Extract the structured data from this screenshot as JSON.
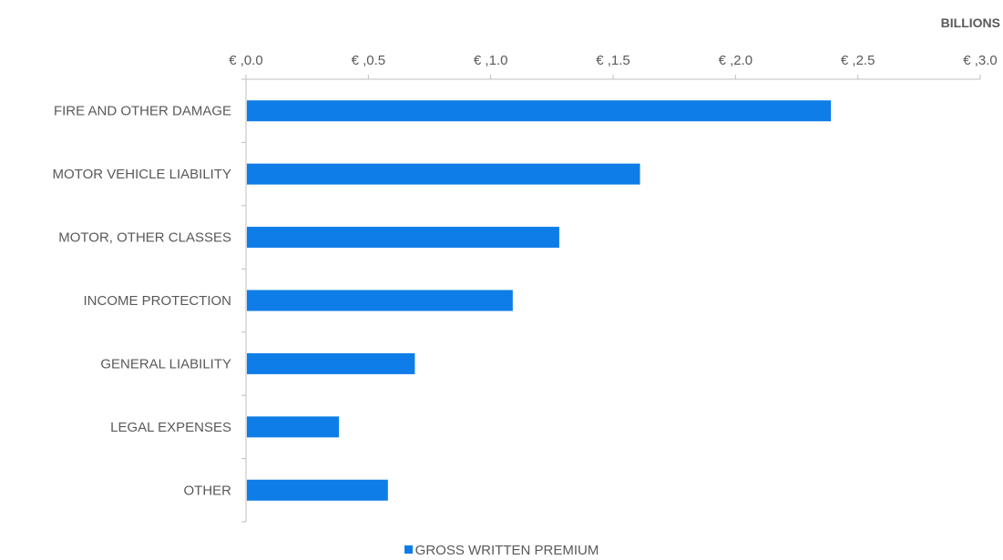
{
  "chart_data": {
    "type": "bar",
    "orientation": "horizontal",
    "unit_label": "BILLIONS",
    "categories": [
      "FIRE AND OTHER DAMAGE",
      "MOTOR VEHICLE LIABILITY",
      "MOTOR, OTHER CLASSES",
      "INCOME PROTECTION",
      "GENERAL LIABILITY",
      "LEGAL EXPENSES",
      "OTHER"
    ],
    "series": [
      {
        "name": "GROSS WRITTEN PREMIUM",
        "color": "#0f7de8",
        "values": [
          2.39,
          1.61,
          1.28,
          1.09,
          0.69,
          0.38,
          0.58
        ]
      }
    ],
    "xlim": [
      0,
      3.0
    ],
    "x_ticks": [
      0.0,
      0.5,
      1.0,
      1.5,
      2.0,
      2.5,
      3.0
    ],
    "x_tick_labels": [
      "€ ,0.0",
      "€ ,0.5",
      "€ ,1.0",
      "€ ,1.5",
      "€ ,2.0",
      "€ ,2.5",
      "€ ,3.0"
    ],
    "x_axis_position": "top",
    "grid": false,
    "legend_position": "bottom-center"
  }
}
